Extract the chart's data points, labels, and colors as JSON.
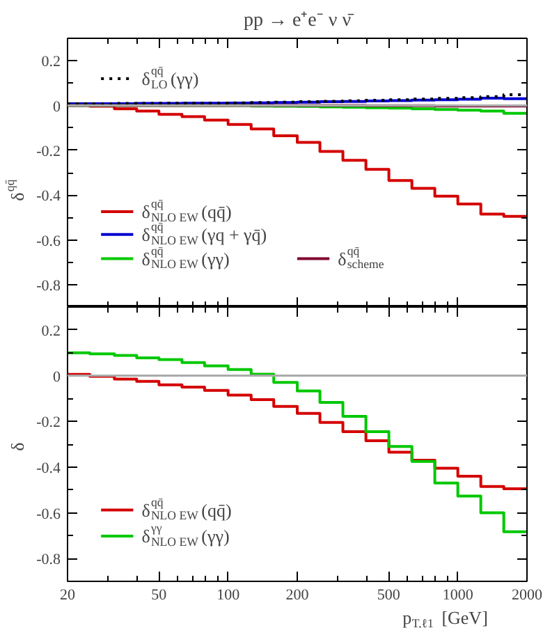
{
  "chart_data": [
    {
      "type": "histogram",
      "title": "pp → e⁺e⁻ ν ν̄",
      "ylabel": "δ$^{qq̄}$",
      "legend": "left",
      "grid": false,
      "tick_labels": "y",
      "log": "x",
      "xlim": [
        20,
        2000
      ],
      "ylim": [
        -0.9,
        0.3
      ],
      "xticks": [
        20,
        {
          "value": 30,
          "label": null
        },
        {
          "value": 40,
          "label": null
        },
        50,
        {
          "value": 60,
          "label": null
        },
        {
          "value": 70,
          "label": null
        },
        {
          "value": 80,
          "label": null
        },
        {
          "value": 90,
          "label": null
        },
        100,
        200,
        {
          "value": 300,
          "label": null
        },
        {
          "value": 400,
          "label": null
        },
        500,
        {
          "value": 600,
          "label": null
        },
        {
          "value": 700,
          "label": null
        },
        {
          "value": 800,
          "label": null
        },
        {
          "value": 900,
          "label": null
        },
        1000,
        2000
      ],
      "yticks": [
        0.2,
        {
          "value": 0.1,
          "label": null
        },
        0,
        {
          "value": -0.1,
          "label": null
        },
        -0.2,
        {
          "value": -0.3,
          "label": null
        },
        -0.4,
        {
          "value": -0.5,
          "label": null
        },
        -0.6,
        {
          "value": -0.7,
          "label": null
        },
        -0.8
      ],
      "ref_lines": [
        {
          "axis": "y",
          "value": 0,
          "color": "#aaaaaa"
        }
      ],
      "bins": [
        20,
        25,
        32,
        40,
        50,
        63,
        79,
        100,
        126,
        158,
        200,
        251,
        316,
        398,
        501,
        631,
        794,
        1000,
        1259,
        1585,
        2000
      ],
      "series": [
        {
          "name": "δ$^{qq̄}$$_{NLO EW}$ (qq̄)",
          "color": "#d40000",
          "values": [
            0.005,
            -0.003,
            -0.015,
            -0.025,
            -0.04,
            -0.05,
            -0.065,
            -0.085,
            -0.105,
            -0.135,
            -0.165,
            -0.205,
            -0.245,
            -0.285,
            -0.335,
            -0.37,
            -0.405,
            -0.44,
            -0.485,
            -0.495
          ]
        },
        {
          "name": "δ$^{qq̄}$$_{NLO EW}$ (γq + γq̄)",
          "color": "#0000d0",
          "values": [
            0.008,
            0.008,
            0.008,
            0.009,
            0.009,
            0.01,
            0.01,
            0.011,
            0.012,
            0.013,
            0.015,
            0.017,
            0.018,
            0.02,
            0.022,
            0.024,
            0.026,
            0.028,
            0.033,
            0.03
          ]
        },
        {
          "name": "δ$^{qq̄}$$_{NLO EW}$ (γγ)",
          "color": "#00c800",
          "values": [
            0,
            0,
            0,
            0,
            0,
            0,
            0,
            0,
            -0.002,
            -0.003,
            -0.004,
            -0.006,
            -0.008,
            -0.01,
            -0.012,
            -0.015,
            -0.018,
            -0.021,
            -0.025,
            -0.035
          ]
        },
        {
          "name": "δ$^{qq̄}$$_{scheme}$",
          "color": "#800030",
          "values": [
            0,
            0,
            0,
            0,
            0,
            0,
            0,
            0,
            0,
            0,
            0,
            0,
            0,
            -0.001,
            -0.001,
            -0.001,
            -0.002,
            -0.002,
            -0.002,
            -0.002
          ]
        },
        {
          "name": "δ$^{qq̄}$$_{LO}$ (γγ)",
          "color": "#000000",
          "line_style": "dotted",
          "values": [
            0.008,
            0.008,
            0.009,
            0.009,
            0.01,
            0.01,
            0.011,
            0.012,
            0.013,
            0.015,
            0.017,
            0.019,
            0.021,
            0.023,
            0.026,
            0.029,
            0.032,
            0.035,
            0.04,
            0.048
          ]
        }
      ]
    },
    {
      "type": "histogram",
      "ylabel": "δ",
      "xlabel": "p$_{T,ℓ1}$ [GeV]",
      "legend": "bottom left",
      "grid": false,
      "log": "x",
      "xlim": [
        20,
        2000
      ],
      "ylim": [
        -0.9,
        0.3
      ],
      "xticks": [
        20,
        {
          "value": 30,
          "label": null
        },
        {
          "value": 40,
          "label": null
        },
        50,
        {
          "value": 60,
          "label": null
        },
        {
          "value": 70,
          "label": null
        },
        {
          "value": 80,
          "label": null
        },
        {
          "value": 90,
          "label": null
        },
        100,
        200,
        {
          "value": 300,
          "label": null
        },
        {
          "value": 400,
          "label": null
        },
        500,
        {
          "value": 600,
          "label": null
        },
        {
          "value": 700,
          "label": null
        },
        {
          "value": 800,
          "label": null
        },
        {
          "value": 900,
          "label": null
        },
        1000,
        2000
      ],
      "yticks": [
        0.2,
        {
          "value": 0.1,
          "label": null
        },
        0,
        {
          "value": -0.1,
          "label": null
        },
        -0.2,
        {
          "value": -0.3,
          "label": null
        },
        -0.4,
        {
          "value": -0.5,
          "label": null
        },
        -0.6,
        {
          "value": -0.7,
          "label": null
        },
        -0.8
      ],
      "ref_lines": [
        {
          "axis": "y",
          "value": 0,
          "color": "#aaaaaa"
        }
      ],
      "bins": [
        20,
        25,
        32,
        40,
        50,
        63,
        79,
        100,
        126,
        158,
        200,
        251,
        316,
        398,
        501,
        631,
        794,
        1000,
        1259,
        1585,
        2000
      ],
      "series": [
        {
          "name": "δ$^{qq̄}$$_{NLO EW}$ (qq̄)",
          "color": "#d40000",
          "values": [
            0.005,
            -0.003,
            -0.015,
            -0.025,
            -0.04,
            -0.05,
            -0.065,
            -0.085,
            -0.105,
            -0.135,
            -0.165,
            -0.205,
            -0.245,
            -0.285,
            -0.335,
            -0.37,
            -0.405,
            -0.44,
            -0.485,
            -0.495
          ]
        },
        {
          "name": "δ$^{γγ}$$_{NLO EW}$ (γγ)",
          "color": "#00c800",
          "values": [
            0.1,
            0.095,
            0.088,
            0.078,
            0.07,
            0.057,
            0.043,
            0.027,
            0.006,
            -0.03,
            -0.067,
            -0.117,
            -0.178,
            -0.245,
            -0.31,
            -0.375,
            -0.47,
            -0.527,
            -0.6,
            -0.683
          ]
        }
      ]
    }
  ]
}
